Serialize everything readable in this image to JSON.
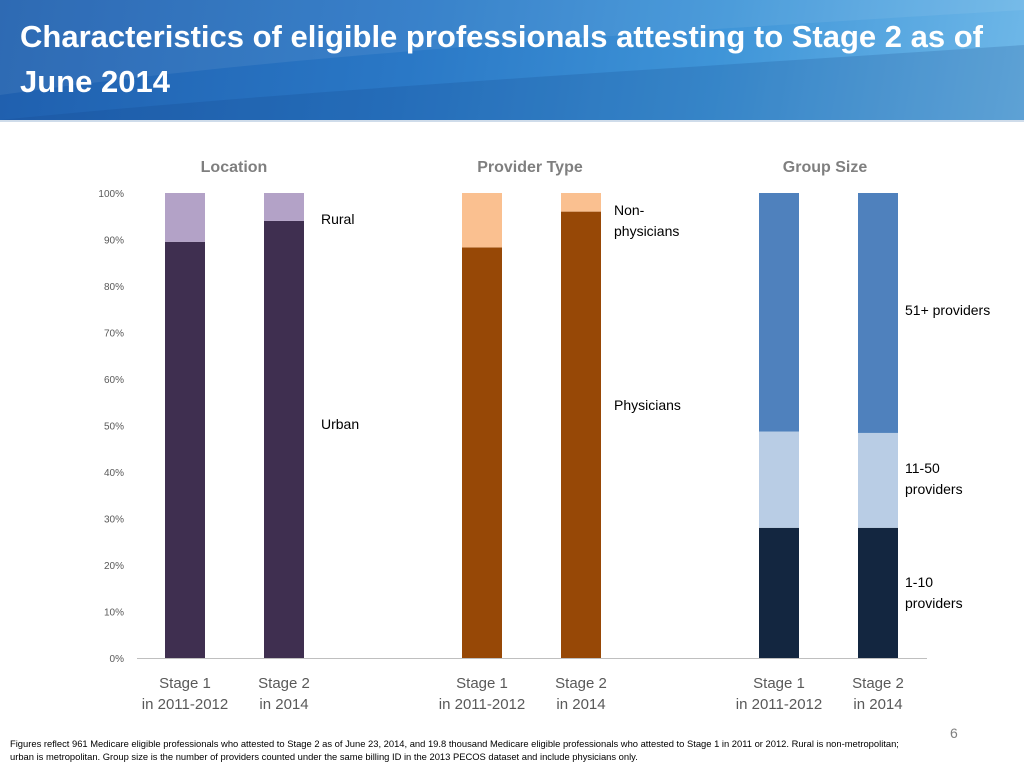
{
  "slide": {
    "title": "Characteristics of eligible professionals attesting to Stage 2 as of June 2014",
    "page_number": "6",
    "footnote": "Figures reflect  961 Medicare eligible professionals who attested to Stage 2 as of June 23, 2014, and 19.8 thousand Medicare eligible professionals who attested to Stage 1 in 2011 or 2012. Rural is non-metropolitan; urban is metropolitan. Group size is the number of providers counted under the same billing ID in the 2013 PECOS dataset and include physicians only."
  },
  "chart_data": {
    "type": "bar",
    "stacked": true,
    "y_ticks": [
      "0%",
      "10%",
      "20%",
      "30%",
      "40%",
      "50%",
      "60%",
      "70%",
      "80%",
      "90%",
      "100%"
    ],
    "ylim": [
      0,
      100
    ],
    "categories": [
      "Stage 1\nin 2011-2012",
      "Stage 2\nin 2014"
    ],
    "panels": [
      {
        "title": "Location",
        "series": [
          {
            "name": "Urban",
            "color": "#3f2f50",
            "values": [
              89.5,
              94.0
            ]
          },
          {
            "name": "Rural",
            "color": "#b3a2c7",
            "values": [
              10.5,
              6.0
            ]
          }
        ]
      },
      {
        "title": "Provider Type",
        "series": [
          {
            "name": "Physicians",
            "color": "#974806",
            "values": [
              88.3,
              96.0
            ]
          },
          {
            "name": "Non-\nphysicians",
            "color": "#fac090",
            "values": [
              11.7,
              4.0
            ]
          }
        ]
      },
      {
        "title": "Group Size",
        "series": [
          {
            "name": "1-10\nproviders",
            "color": "#132640",
            "values": [
              28.0,
              28.0
            ]
          },
          {
            "name": "11-50\nproviders",
            "color": "#b9cde5",
            "values": [
              20.7,
              20.4
            ]
          },
          {
            "name": "51+ providers",
            "color": "#4f81bd",
            "values": [
              51.3,
              51.6
            ]
          }
        ]
      }
    ]
  }
}
